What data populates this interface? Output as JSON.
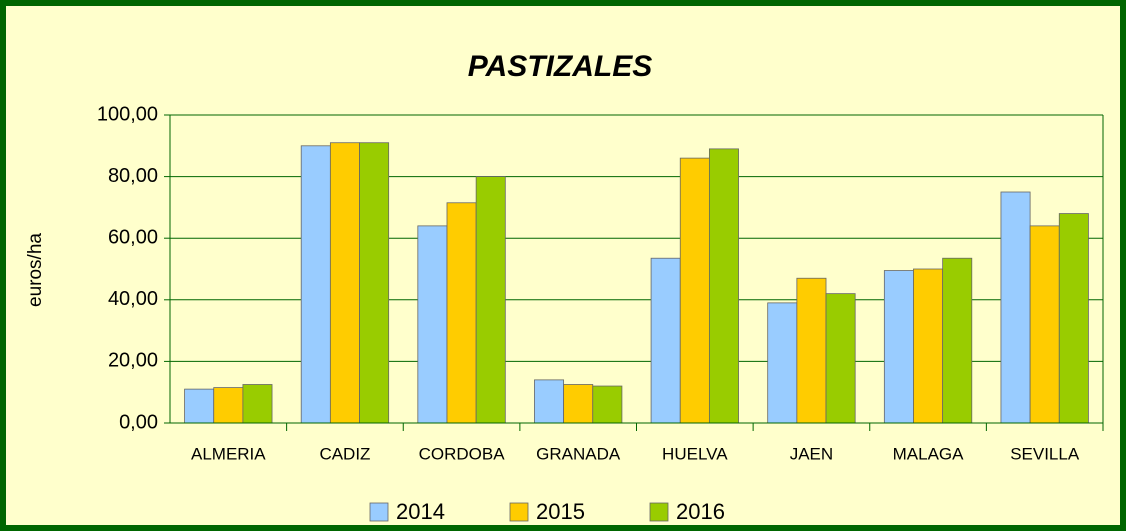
{
  "chart_data": {
    "type": "bar",
    "title": "PASTIZALES",
    "y_label": "euros/ha",
    "categories": [
      "ALMERIA",
      "CADIZ",
      "CORDOBA",
      "GRANADA",
      "HUELVA",
      "JAEN",
      "MALAGA",
      "SEVILLA"
    ],
    "series": [
      {
        "name": "2014",
        "color": "#99ccff",
        "values": [
          11,
          90,
          64,
          14,
          53.5,
          39,
          49.5,
          75
        ]
      },
      {
        "name": "2015",
        "color": "#ffcc00",
        "values": [
          11.5,
          91,
          71.5,
          12.5,
          86,
          47,
          50,
          64
        ]
      },
      {
        "name": "2016",
        "color": "#99cc00",
        "values": [
          12.5,
          91,
          80,
          12,
          89,
          42,
          53.5,
          68
        ]
      }
    ],
    "ylim": [
      0,
      100
    ],
    "yticks": [
      {
        "value": 0,
        "label": "0,00"
      },
      {
        "value": 20,
        "label": "20,00"
      },
      {
        "value": 40,
        "label": "40,00"
      },
      {
        "value": 60,
        "label": "60,00"
      },
      {
        "value": 80,
        "label": "80,00"
      },
      {
        "value": 100,
        "label": "100,00"
      }
    ],
    "grid": true,
    "legend": "bottom"
  }
}
